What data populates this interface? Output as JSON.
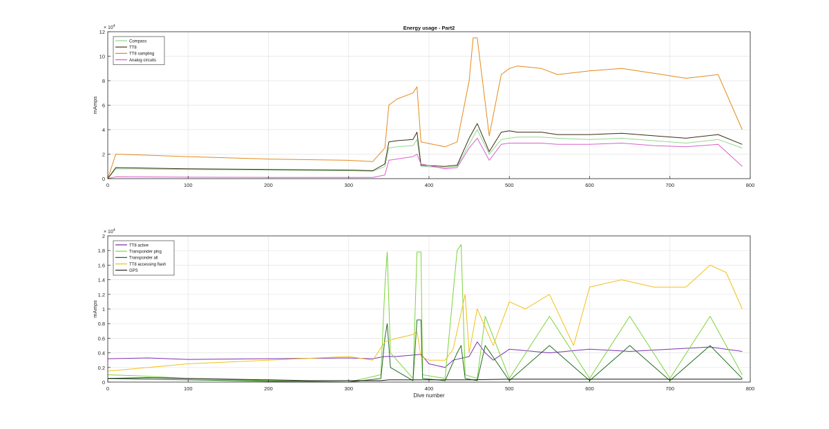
{
  "chart_data": [
    {
      "type": "line",
      "title": "Energy usage - Part2",
      "xlabel": "",
      "ylabel": "mAmps",
      "y_exponent": "× 10",
      "y_exponent_power": "4",
      "xlim": [
        0,
        800
      ],
      "ylim": [
        0,
        12
      ],
      "y_scale_note": "values in units of 10^4 mAmps",
      "grid": true,
      "legend_position": "top-left",
      "x_ticks": [
        "0",
        "100",
        "200",
        "300",
        "400",
        "500",
        "600",
        "700",
        "800"
      ],
      "y_ticks": [
        "0",
        "2",
        "4",
        "6",
        "8",
        "10",
        "12"
      ],
      "x_tick_values": [
        0,
        100,
        200,
        300,
        400,
        500,
        600,
        700,
        800
      ],
      "y_tick_values": [
        0,
        2,
        4,
        6,
        8,
        10,
        12
      ],
      "series": [
        {
          "name": "Compass",
          "color": "#8fd98f",
          "x": [
            0,
            10,
            100,
            200,
            300,
            330,
            345,
            350,
            360,
            380,
            385,
            390,
            420,
            435,
            450,
            460,
            475,
            490,
            500,
            510,
            540,
            560,
            600,
            640,
            680,
            720,
            760,
            790
          ],
          "y": [
            0,
            0.8,
            0.75,
            0.7,
            0.65,
            0.6,
            1.0,
            2.5,
            2.6,
            2.7,
            3.2,
            1.0,
            0.9,
            1.0,
            2.8,
            4.0,
            2.0,
            3.2,
            3.3,
            3.4,
            3.4,
            3.3,
            3.2,
            3.3,
            3.1,
            2.9,
            3.2,
            2.5
          ]
        },
        {
          "name": "TT8",
          "color": "#3a2a10",
          "x": [
            0,
            10,
            100,
            200,
            300,
            330,
            345,
            350,
            360,
            380,
            385,
            390,
            420,
            435,
            450,
            460,
            475,
            490,
            500,
            510,
            540,
            560,
            600,
            640,
            680,
            720,
            760,
            790
          ],
          "y": [
            0,
            0.9,
            0.8,
            0.75,
            0.7,
            0.65,
            1.2,
            3.0,
            3.1,
            3.2,
            3.8,
            1.1,
            1.0,
            1.1,
            3.3,
            4.5,
            2.2,
            3.8,
            3.9,
            3.8,
            3.8,
            3.6,
            3.6,
            3.7,
            3.5,
            3.3,
            3.6,
            2.8
          ]
        },
        {
          "name": "TT8 sampling",
          "color": "#e3891b",
          "x": [
            0,
            10,
            100,
            200,
            300,
            330,
            345,
            350,
            360,
            380,
            385,
            390,
            420,
            435,
            450,
            455,
            460,
            475,
            490,
            500,
            510,
            540,
            560,
            600,
            640,
            680,
            720,
            760,
            790
          ],
          "y": [
            0,
            2.0,
            1.8,
            1.6,
            1.5,
            1.4,
            2.5,
            6.0,
            6.5,
            7.0,
            7.5,
            3.0,
            2.6,
            3.0,
            8.0,
            11.5,
            11.5,
            3.5,
            8.5,
            9.0,
            9.2,
            9.0,
            8.5,
            8.8,
            9.0,
            8.6,
            8.2,
            8.5,
            4.0
          ]
        },
        {
          "name": "Analog circuits",
          "color": "#d95fcd",
          "x": [
            0,
            10,
            100,
            200,
            300,
            330,
            345,
            350,
            360,
            380,
            385,
            390,
            420,
            435,
            450,
            460,
            475,
            490,
            500,
            510,
            540,
            560,
            600,
            640,
            680,
            720,
            760,
            790
          ],
          "y": [
            0,
            0.15,
            0.12,
            0.1,
            0.1,
            0.1,
            0.3,
            1.5,
            1.6,
            1.8,
            2.0,
            1.2,
            0.8,
            0.9,
            2.5,
            3.3,
            1.5,
            2.8,
            2.9,
            2.9,
            2.9,
            2.8,
            2.8,
            2.9,
            2.7,
            2.6,
            2.8,
            1.0
          ]
        }
      ]
    },
    {
      "type": "line",
      "title": "",
      "xlabel": "Dive number",
      "ylabel": "mAmps",
      "y_exponent": "× 10",
      "y_exponent_power": "4",
      "xlim": [
        0,
        800
      ],
      "ylim": [
        0,
        2
      ],
      "y_scale_note": "values in units of 10^4 mAmps",
      "grid": true,
      "legend_position": "top-left",
      "x_ticks": [
        "0",
        "100",
        "200",
        "300",
        "400",
        "500",
        "600",
        "700",
        "800"
      ],
      "y_ticks": [
        "0",
        "0.2",
        "0.4",
        "0.6",
        "0.8",
        "1",
        "1.2",
        "1.4",
        "1.6",
        "1.8",
        "2"
      ],
      "x_tick_values": [
        0,
        100,
        200,
        300,
        400,
        500,
        600,
        700,
        800
      ],
      "y_tick_values": [
        0,
        0.2,
        0.4,
        0.6,
        0.8,
        1,
        1.2,
        1.4,
        1.6,
        1.8,
        2
      ],
      "series": [
        {
          "name": "TT8 active",
          "color": "#7a2fb0",
          "x": [
            0,
            50,
            100,
            200,
            300,
            330,
            345,
            360,
            390,
            400,
            420,
            430,
            450,
            460,
            470,
            480,
            500,
            550,
            600,
            650,
            700,
            750,
            790
          ],
          "y": [
            0.32,
            0.33,
            0.31,
            0.32,
            0.33,
            0.32,
            0.35,
            0.35,
            0.38,
            0.25,
            0.2,
            0.3,
            0.35,
            0.55,
            0.4,
            0.3,
            0.45,
            0.4,
            0.45,
            0.42,
            0.45,
            0.48,
            0.42
          ]
        },
        {
          "name": "Transponder ping",
          "color": "#7bd33a",
          "x": [
            0,
            50,
            100,
            200,
            300,
            340,
            345,
            348,
            352,
            380,
            385,
            390,
            392,
            420,
            435,
            440,
            445,
            460,
            470,
            500,
            550,
            600,
            650,
            700,
            750,
            790
          ],
          "y": [
            0.1,
            0.08,
            0.05,
            0.02,
            0.0,
            0.1,
            1.3,
            1.78,
            0.4,
            0.05,
            1.78,
            1.78,
            0.1,
            0.05,
            1.8,
            1.88,
            0.1,
            0.05,
            0.9,
            0.05,
            0.9,
            0.05,
            0.9,
            0.05,
            0.9,
            0.1
          ]
        },
        {
          "name": "Transponder all",
          "color": "#1e6b1e",
          "x": [
            0,
            50,
            100,
            200,
            300,
            340,
            345,
            348,
            352,
            380,
            385,
            390,
            392,
            420,
            435,
            440,
            445,
            460,
            470,
            500,
            550,
            600,
            650,
            700,
            750,
            790
          ],
          "y": [
            0.05,
            0.04,
            0.03,
            0.01,
            0.0,
            0.05,
            0.6,
            0.8,
            0.2,
            0.02,
            0.85,
            0.85,
            0.05,
            0.02,
            0.4,
            0.5,
            0.05,
            0.02,
            0.5,
            0.02,
            0.5,
            0.02,
            0.5,
            0.02,
            0.5,
            0.05
          ]
        },
        {
          "name": "TT8 accessing flash",
          "color": "#f2c018",
          "x": [
            0,
            50,
            100,
            200,
            300,
            330,
            345,
            360,
            380,
            385,
            390,
            400,
            420,
            430,
            445,
            450,
            460,
            480,
            500,
            520,
            550,
            580,
            600,
            640,
            680,
            720,
            750,
            770,
            790
          ],
          "y": [
            0.15,
            0.2,
            0.25,
            0.3,
            0.35,
            0.3,
            0.55,
            0.6,
            0.65,
            0.7,
            0.35,
            0.3,
            0.3,
            0.45,
            1.2,
            0.4,
            1.0,
            0.5,
            1.1,
            1.0,
            1.2,
            0.5,
            1.3,
            1.4,
            1.3,
            1.3,
            1.6,
            1.5,
            1.0
          ]
        },
        {
          "name": "GPS",
          "color": "#111111",
          "x": [
            0,
            50,
            100,
            150,
            200,
            250,
            300,
            340,
            350,
            360,
            400,
            450,
            500,
            550,
            600,
            650,
            700,
            750,
            790
          ],
          "y": [
            0.05,
            0.06,
            0.05,
            0.04,
            0.03,
            0.02,
            0.02,
            0.02,
            0.03,
            0.03,
            0.03,
            0.03,
            0.04,
            0.04,
            0.04,
            0.04,
            0.04,
            0.04,
            0.04
          ]
        }
      ]
    }
  ]
}
